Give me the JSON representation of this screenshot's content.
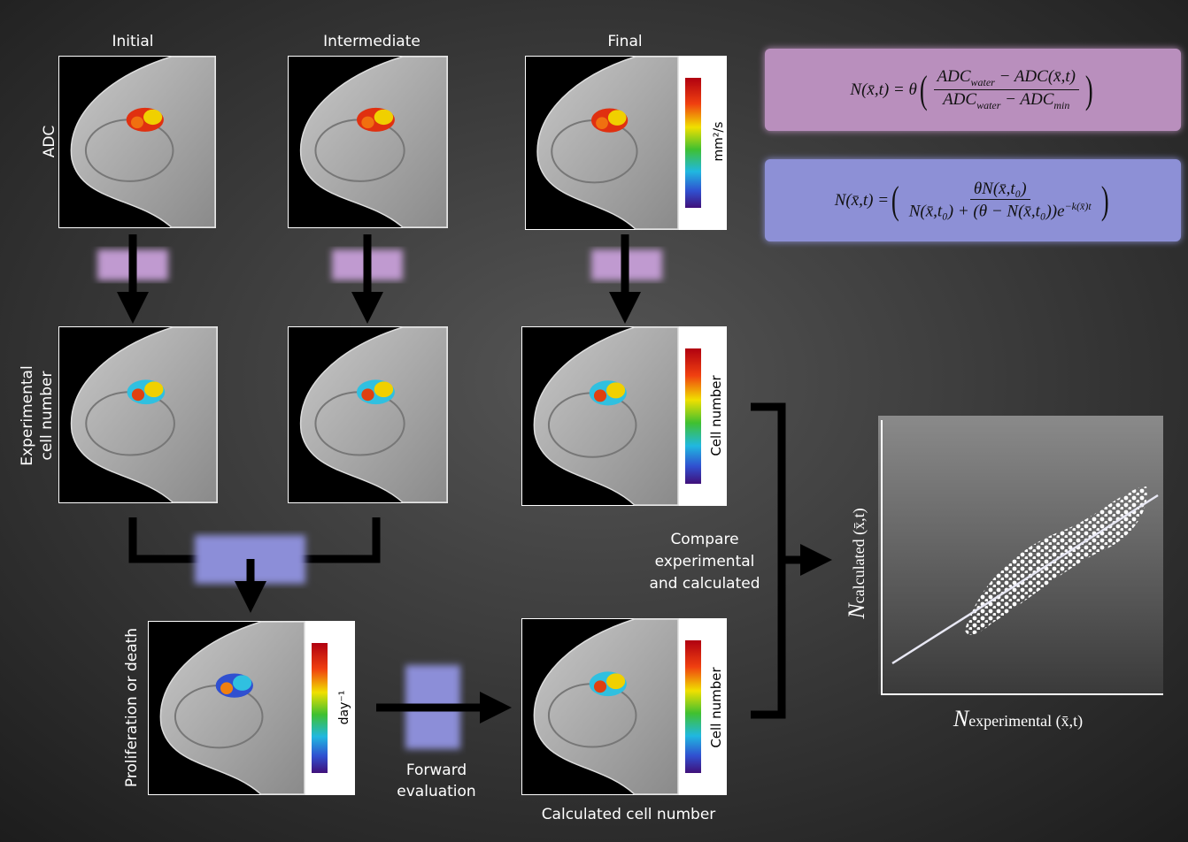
{
  "columns": [
    "Initial",
    "Intermediate",
    "Final"
  ],
  "rows": {
    "adc": "ADC",
    "experimental": [
      "Experimental",
      "cell number"
    ],
    "proliferation": "Proliferation or death"
  },
  "colorbars": {
    "adc": "mm²/s",
    "final_cell": "Cell number",
    "calculated_cell": "Cell number",
    "proliferation": "day⁻¹"
  },
  "equations": {
    "eq1": {
      "lhs": "N(x̄,t) = θ",
      "numerator": [
        "ADC",
        "water",
        "− ADC(x̄,t)"
      ],
      "denominator": [
        "ADC",
        "water",
        "− ADC",
        "min"
      ]
    },
    "eq2": {
      "lhs": "N(x̄,t) =",
      "numerator": "θN(x̄,t₀)",
      "denominator": [
        "N(x̄,t₀) + (θ − N(x̄,t₀))e",
        "−k(x̄)t"
      ]
    }
  },
  "annotations": {
    "compare": [
      "Compare",
      "experimental",
      "and calculated"
    ],
    "forward": [
      "Forward",
      "evaluation"
    ],
    "calculated": "Calculated cell number"
  },
  "scatter": {
    "y_label": [
      "N",
      "calculated (x̄,t)"
    ],
    "x_label": [
      "N",
      "experimental (x̄,t)"
    ]
  }
}
